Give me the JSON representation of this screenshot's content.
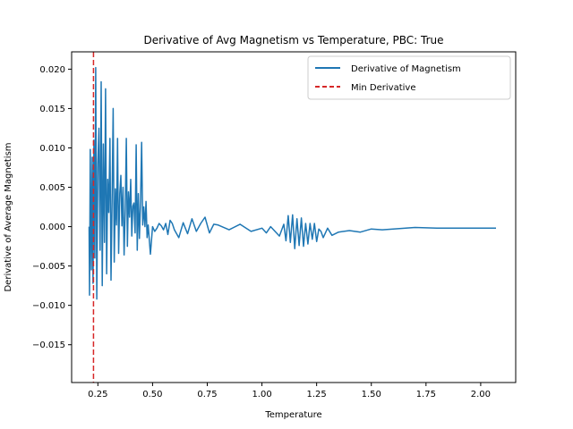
{
  "chart_data": {
    "type": "line",
    "title": "Derivative of Avg Magnetism vs Temperature, PBC: True",
    "xlabel": "Temperature",
    "ylabel": "Derivative of Average Magnetism",
    "xlim": [
      0.13,
      2.16
    ],
    "ylim": [
      -0.0198,
      0.0222
    ],
    "xticks": [
      0.25,
      0.5,
      0.75,
      1.0,
      1.25,
      1.5,
      1.75,
      2.0
    ],
    "xtick_labels": [
      "0.25",
      "0.50",
      "0.75",
      "1.00",
      "1.25",
      "1.50",
      "1.75",
      "2.00"
    ],
    "yticks": [
      -0.015,
      -0.01,
      -0.005,
      0.0,
      0.005,
      0.01,
      0.015,
      0.02
    ],
    "ytick_labels": [
      "−0.015",
      "−0.010",
      "−0.005",
      "0.000",
      "0.005",
      "0.010",
      "0.015",
      "0.020"
    ],
    "grid": false,
    "legend_position": "top-right",
    "series": [
      {
        "name": "Derivative of Magnetism",
        "style": "solid",
        "color": "#1f77b4",
        "x": [
          0.21,
          0.212,
          0.215,
          0.22,
          0.224,
          0.228,
          0.232,
          0.236,
          0.24,
          0.245,
          0.25,
          0.255,
          0.26,
          0.265,
          0.27,
          0.275,
          0.28,
          0.285,
          0.29,
          0.295,
          0.3,
          0.305,
          0.31,
          0.315,
          0.32,
          0.325,
          0.33,
          0.335,
          0.34,
          0.345,
          0.35,
          0.355,
          0.36,
          0.365,
          0.37,
          0.375,
          0.38,
          0.385,
          0.39,
          0.395,
          0.4,
          0.405,
          0.41,
          0.415,
          0.42,
          0.425,
          0.43,
          0.435,
          0.44,
          0.445,
          0.45,
          0.455,
          0.46,
          0.465,
          0.47,
          0.475,
          0.48,
          0.49,
          0.5,
          0.51,
          0.52,
          0.53,
          0.54,
          0.55,
          0.56,
          0.57,
          0.58,
          0.59,
          0.6,
          0.62,
          0.64,
          0.66,
          0.68,
          0.7,
          0.72,
          0.74,
          0.76,
          0.78,
          0.8,
          0.85,
          0.9,
          0.95,
          1.0,
          1.02,
          1.04,
          1.06,
          1.08,
          1.1,
          1.11,
          1.12,
          1.13,
          1.14,
          1.15,
          1.16,
          1.17,
          1.18,
          1.19,
          1.2,
          1.21,
          1.22,
          1.23,
          1.24,
          1.25,
          1.26,
          1.27,
          1.28,
          1.3,
          1.32,
          1.35,
          1.4,
          1.45,
          1.5,
          1.55,
          1.6,
          1.7,
          1.8,
          1.9,
          2.0,
          2.07
        ],
        "y": [
          0.0,
          -0.0087,
          0.0098,
          -0.0055,
          0.0088,
          -0.0072,
          0.011,
          -0.004,
          0.0202,
          -0.0092,
          0.008,
          0.0125,
          -0.003,
          0.0184,
          -0.0075,
          0.0105,
          -0.002,
          0.0175,
          -0.006,
          0.006,
          0.0018,
          0.0112,
          -0.0068,
          0.0035,
          0.015,
          -0.0045,
          0.0048,
          0.0002,
          0.0112,
          -0.0034,
          0.0042,
          0.0065,
          0.0001,
          0.005,
          -0.0036,
          0.0022,
          0.0112,
          -0.0025,
          0.0044,
          0.0012,
          0.006,
          -0.0012,
          0.0026,
          0.003,
          -0.0008,
          0.0104,
          -0.003,
          0.0042,
          -0.0015,
          0.0032,
          0.0107,
          0.0002,
          0.0025,
          0.0,
          0.0032,
          -0.0014,
          0.0002,
          -0.0035,
          0.0,
          -0.0006,
          -0.0002,
          0.0004,
          0.0001,
          -0.0004,
          0.0004,
          -0.001,
          0.0008,
          0.0004,
          -0.0004,
          -0.0014,
          0.0005,
          -0.0009,
          0.001,
          -0.0006,
          0.0004,
          0.0012,
          -0.0008,
          0.0003,
          0.0002,
          -0.0004,
          0.0003,
          -0.0006,
          -0.0002,
          -0.0008,
          0.0,
          -0.0006,
          -0.0012,
          0.0003,
          -0.0018,
          0.0014,
          -0.002,
          0.0015,
          -0.0028,
          0.001,
          -0.0024,
          0.0011,
          -0.0025,
          0.0004,
          -0.0022,
          0.0004,
          -0.0016,
          0.0004,
          -0.0019,
          -0.0003,
          -0.0006,
          -0.0014,
          -0.0002,
          -0.0011,
          -0.0007,
          -0.0005,
          -0.0007,
          -0.0003,
          -0.0004,
          -0.0003,
          -0.0001,
          -0.0002,
          -0.0002,
          -0.0002,
          -0.0002
        ]
      },
      {
        "name": "Min Derivative",
        "style": "dashed",
        "color": "#d62728",
        "x_value": 0.23
      }
    ]
  }
}
